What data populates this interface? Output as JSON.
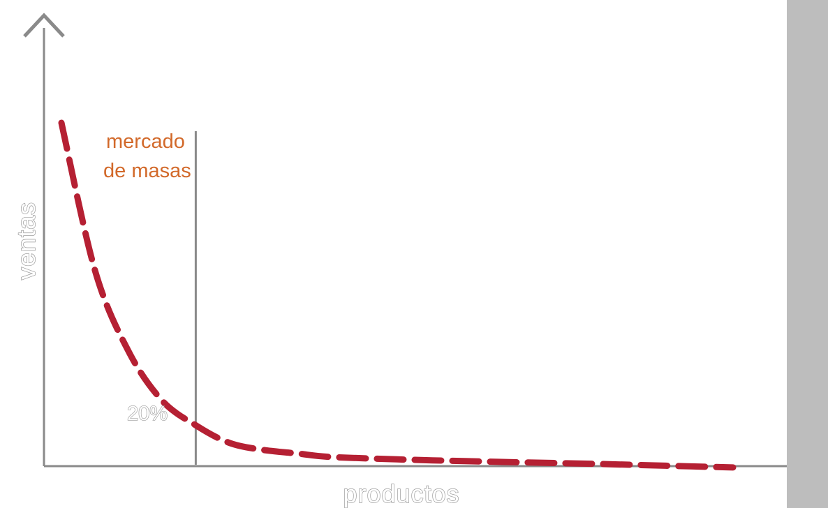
{
  "chart_data": {
    "type": "line",
    "xlabel": "productos",
    "ylabel": "ventas",
    "annotations": [
      {
        "text_lines": [
          "mercado",
          "de masas"
        ]
      },
      {
        "text": "20%"
      }
    ],
    "threshold_x": 20,
    "xlim": [
      0,
      100
    ],
    "ylim": [
      0,
      100
    ],
    "grid": false,
    "legend": "none",
    "series": [
      {
        "style": "dashed",
        "color": "#b52033",
        "x": [
          0,
          5,
          10,
          15,
          20,
          25,
          30,
          35,
          40,
          50,
          60,
          70,
          80,
          90,
          100
        ],
        "y": [
          100,
          58,
          35,
          21,
          14,
          9,
          7,
          6,
          5,
          4.3,
          3.8,
          3.4,
          3.0,
          2.5,
          2.0
        ]
      }
    ]
  },
  "colors": {
    "curve": "#b52033",
    "annotation": "#d2692a",
    "axis": "#8a8a8a",
    "side_strip": "#bdbdbd"
  }
}
